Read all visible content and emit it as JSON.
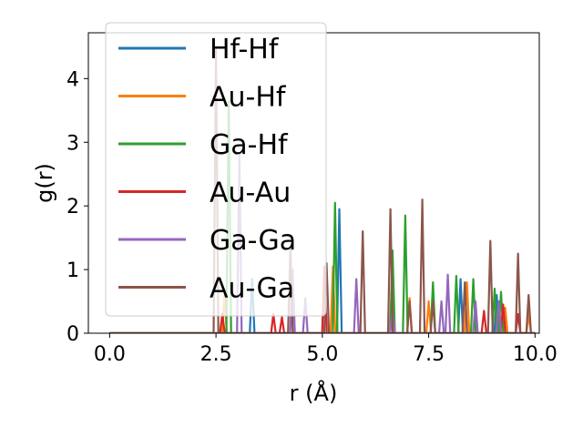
{
  "chart_data": {
    "type": "line",
    "title": "",
    "xlabel": "r (Å)",
    "ylabel": "g(r)",
    "xlim": [
      -0.5,
      10.1
    ],
    "ylim": [
      0,
      4.72
    ],
    "xticks": [
      0.0,
      2.5,
      5.0,
      7.5,
      10.0
    ],
    "xtick_labels": [
      "0.0",
      "2.5",
      "5.0",
      "7.5",
      "10.0"
    ],
    "yticks": [
      0,
      1,
      2,
      3,
      4
    ],
    "ytick_labels": [
      "0",
      "1",
      "2",
      "3",
      "4"
    ],
    "grid": false,
    "legend_position": "top-left",
    "series": [
      {
        "name": "Hf-Hf",
        "color": "#1f77b4",
        "peaks": [
          [
            3.35,
            0.85
          ],
          [
            5.4,
            1.95
          ],
          [
            8.25,
            0.85
          ],
          [
            9.1,
            0.6
          ]
        ]
      },
      {
        "name": "Au-Hf",
        "color": "#ff7f0e",
        "peaks": [
          [
            2.7,
            0.6
          ],
          [
            5.25,
            1.05
          ],
          [
            7.05,
            0.55
          ],
          [
            7.5,
            0.5
          ],
          [
            8.4,
            0.8
          ],
          [
            9.3,
            0.4
          ],
          [
            9.85,
            0.3
          ]
        ]
      },
      {
        "name": "Ga-Hf",
        "color": "#2ca02c",
        "peaks": [
          [
            2.8,
            3.65
          ],
          [
            5.3,
            2.05
          ],
          [
            6.65,
            1.3
          ],
          [
            6.95,
            1.85
          ],
          [
            7.6,
            0.8
          ],
          [
            8.15,
            0.9
          ],
          [
            8.55,
            0.85
          ],
          [
            9.05,
            0.7
          ],
          [
            9.2,
            0.65
          ]
        ]
      },
      {
        "name": "Au-Au",
        "color": "#d62728",
        "peaks": [
          [
            2.65,
            0.3
          ],
          [
            3.85,
            0.3
          ],
          [
            4.05,
            0.25
          ],
          [
            5.05,
            1.05
          ],
          [
            8.8,
            0.35
          ],
          [
            9.25,
            0.45
          ],
          [
            9.6,
            0.3
          ]
        ]
      },
      {
        "name": "Ga-Ga",
        "color": "#9467bd",
        "peaks": [
          [
            3.05,
            2.8
          ],
          [
            4.3,
            1.0
          ],
          [
            4.6,
            0.55
          ],
          [
            5.8,
            0.85
          ],
          [
            6.65,
            0.35
          ],
          [
            7.8,
            0.5
          ],
          [
            7.95,
            0.92
          ],
          [
            8.6,
            0.5
          ],
          [
            9.15,
            0.5
          ]
        ]
      },
      {
        "name": "Au-Ga",
        "color": "#8c564b",
        "peaks": [
          [
            2.5,
            4.45
          ],
          [
            4.25,
            1.35
          ],
          [
            5.1,
            1.1
          ],
          [
            5.95,
            1.6
          ],
          [
            6.6,
            1.95
          ],
          [
            7.05,
            0.5
          ],
          [
            7.35,
            2.1
          ],
          [
            7.6,
            0.5
          ],
          [
            8.35,
            0.8
          ],
          [
            8.95,
            1.45
          ],
          [
            9.6,
            1.25
          ],
          [
            9.85,
            0.6
          ]
        ]
      }
    ]
  }
}
